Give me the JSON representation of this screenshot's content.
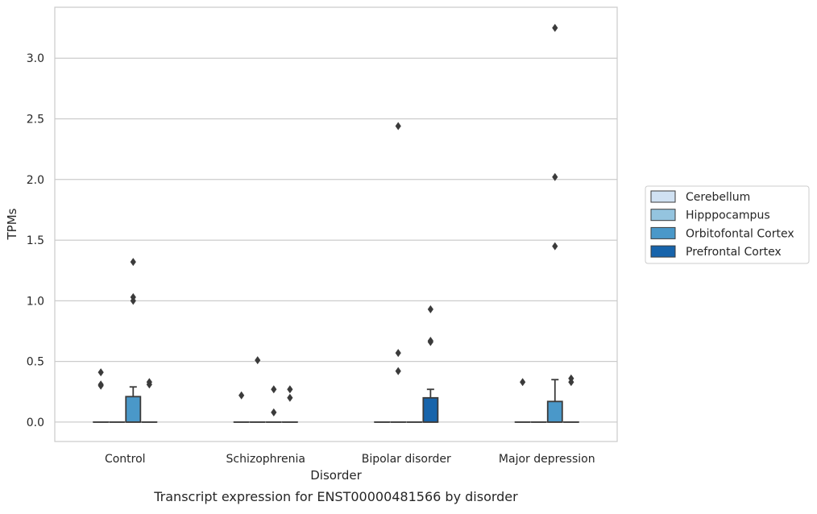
{
  "chart_data": {
    "type": "box",
    "title": "",
    "caption": "Transcript expression for ENST00000481566 by disorder",
    "xlabel": "Disorder",
    "ylabel": "TPMs",
    "ylim": [
      -0.16,
      3.42
    ],
    "yticks": [
      "0.0",
      "0.5",
      "1.0",
      "1.5",
      "2.0",
      "2.5",
      "3.0"
    ],
    "ytick_values": [
      0,
      0.5,
      1.0,
      1.5,
      2.0,
      2.5,
      3.0
    ],
    "categories": [
      "Control",
      "Schizophrenia",
      "Bipolar disorder",
      "Major depression"
    ],
    "grid": "horizontal",
    "legend_position": "center-right, outside plot",
    "series": [
      {
        "name": "Cerebellum",
        "color": "#d0e1f2",
        "boxes": [
          {
            "q1": 0,
            "median": 0,
            "q3": 0,
            "whisker_low": 0,
            "whisker_high": 0,
            "outliers": [
              0.41,
              0.3,
              0.31
            ]
          },
          {
            "q1": 0,
            "median": 0,
            "q3": 0,
            "whisker_low": 0,
            "whisker_high": 0,
            "outliers": [
              0.22
            ]
          },
          {
            "q1": 0,
            "median": 0,
            "q3": 0,
            "whisker_low": 0,
            "whisker_high": 0,
            "outliers": []
          },
          {
            "q1": 0,
            "median": 0,
            "q3": 0,
            "whisker_low": 0,
            "whisker_high": 0,
            "outliers": [
              0.33
            ]
          }
        ]
      },
      {
        "name": "Hipppocampus",
        "color": "#94c4df",
        "boxes": [
          {
            "q1": 0,
            "median": 0,
            "q3": 0,
            "whisker_low": 0,
            "whisker_high": 0,
            "outliers": []
          },
          {
            "q1": 0,
            "median": 0,
            "q3": 0,
            "whisker_low": 0,
            "whisker_high": 0,
            "outliers": [
              0.51
            ]
          },
          {
            "q1": 0,
            "median": 0,
            "q3": 0,
            "whisker_low": 0,
            "whisker_high": 0,
            "outliers": [
              2.44,
              0.57,
              0.42
            ]
          },
          {
            "q1": 0,
            "median": 0,
            "q3": 0,
            "whisker_low": 0,
            "whisker_high": 0,
            "outliers": []
          }
        ]
      },
      {
        "name": "Orbitofontal Cortex",
        "color": "#4a98c9",
        "boxes": [
          {
            "q1": 0,
            "median": 0,
            "q3": 0.21,
            "whisker_low": 0,
            "whisker_high": 0.29,
            "outliers": [
              1.32,
              1.03,
              1.0
            ]
          },
          {
            "q1": 0,
            "median": 0,
            "q3": 0,
            "whisker_low": 0,
            "whisker_high": 0,
            "outliers": [
              0.27,
              0.08
            ]
          },
          {
            "q1": 0,
            "median": 0,
            "q3": 0,
            "whisker_low": 0,
            "whisker_high": 0,
            "outliers": []
          },
          {
            "q1": 0,
            "median": 0,
            "q3": 0.17,
            "whisker_low": 0,
            "whisker_high": 0.35,
            "outliers": [
              3.25,
              2.02,
              1.45
            ]
          }
        ]
      },
      {
        "name": "Prefrontal Cortex",
        "color": "#1764ab",
        "boxes": [
          {
            "q1": 0,
            "median": 0,
            "q3": 0,
            "whisker_low": 0,
            "whisker_high": 0,
            "outliers": [
              0.33,
              0.31
            ]
          },
          {
            "q1": 0,
            "median": 0,
            "q3": 0,
            "whisker_low": 0,
            "whisker_high": 0,
            "outliers": [
              0.27,
              0.2
            ]
          },
          {
            "q1": 0,
            "median": 0,
            "q3": 0.2,
            "whisker_low": 0,
            "whisker_high": 0.27,
            "outliers": [
              0.93,
              0.67,
              0.66
            ]
          },
          {
            "q1": 0,
            "median": 0,
            "q3": 0,
            "whisker_low": 0,
            "whisker_high": 0,
            "outliers": [
              0.36,
              0.33
            ]
          }
        ]
      }
    ]
  }
}
